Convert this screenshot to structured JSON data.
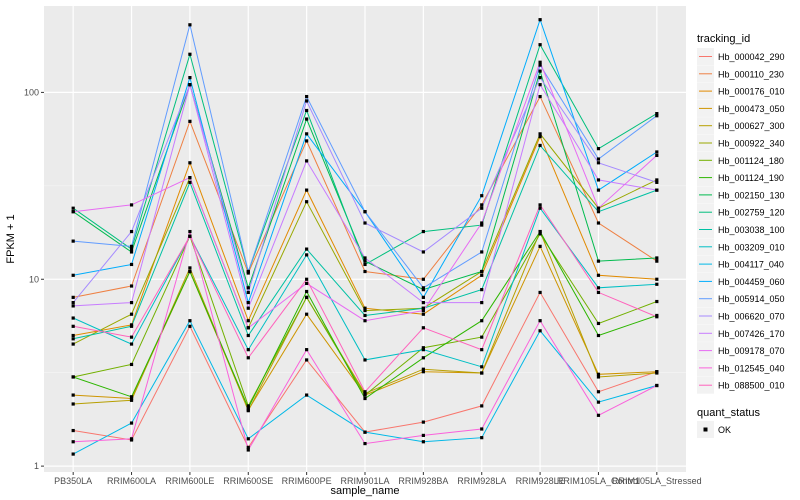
{
  "chart_data": {
    "type": "line",
    "xlabel": "sample_name",
    "ylabel": "FPKM + 1",
    "y_scale": "log10",
    "ylim": [
      0.93,
      290
    ],
    "y_ticks": [
      1,
      10,
      100
    ],
    "y_tick_labels": [
      "1",
      "10",
      "100"
    ],
    "grid": true,
    "legend_placement": "right",
    "categories": [
      "PB350LA",
      "RRIM600LA",
      "RRIM600LE",
      "RRIM600SE",
      "RRIM600PE",
      "RRIM901LA",
      "RRIM928BA",
      "RRIM928LA",
      "RRIM928LE",
      "RRIM105LA_Control",
      "RRIM105LA_Stressed"
    ],
    "legend_title": "tracking_id",
    "point_legend_title": "quant_status",
    "point_legend_entries": [
      "OK"
    ],
    "series": [
      {
        "name": "Hb_000042_290",
        "color": "#F8766D",
        "values": [
          1.55,
          1.38,
          5.6,
          1.26,
          3.7,
          1.52,
          1.72,
          2.1,
          8.5,
          2.5,
          3.2
        ]
      },
      {
        "name": "Hb_000110_230",
        "color": "#EE8043",
        "values": [
          8.0,
          9.2,
          70.0,
          10.8,
          55.0,
          11.0,
          10.0,
          25.0,
          95.0,
          20.0,
          12.5
        ]
      },
      {
        "name": "Hb_000176_010",
        "color": "#E18A00",
        "values": [
          5.0,
          5.7,
          42.0,
          6.0,
          30.0,
          7.0,
          6.5,
          10.5,
          58.0,
          10.5,
          10.0
        ]
      },
      {
        "name": "Hb_000473_050",
        "color": "#CE9500",
        "values": [
          2.4,
          2.3,
          11.0,
          2.0,
          6.5,
          2.4,
          3.2,
          3.15,
          15.0,
          3.1,
          3.2
        ]
      },
      {
        "name": "Hb_000627_300",
        "color": "#B79F00",
        "values": [
          2.15,
          2.25,
          11.5,
          1.98,
          8.0,
          2.45,
          3.3,
          3.15,
          18.0,
          3.0,
          3.15
        ]
      },
      {
        "name": "Hb_000922_340",
        "color": "#99A800",
        "values": [
          4.5,
          6.5,
          35.0,
          5.5,
          26.0,
          6.8,
          7.0,
          11.0,
          60.0,
          24.0,
          34.0
        ]
      },
      {
        "name": "Hb_001124_180",
        "color": "#72B000",
        "values": [
          3.0,
          3.5,
          17.0,
          2.1,
          8.0,
          2.4,
          4.3,
          4.9,
          17.5,
          5.8,
          7.6
        ]
      },
      {
        "name": "Hb_001124_190",
        "color": "#2DB600",
        "values": [
          3.0,
          2.35,
          11.0,
          2.05,
          8.6,
          2.3,
          3.8,
          6.0,
          18.0,
          5.0,
          6.4
        ]
      },
      {
        "name": "Hb_002150_130",
        "color": "#00BB4E",
        "values": [
          23.0,
          14.0,
          110.0,
          9.0,
          72.0,
          12.5,
          8.8,
          11.0,
          130.0,
          12.5,
          13.0
        ]
      },
      {
        "name": "Hb_002759_120",
        "color": "#00BF7D",
        "values": [
          24.0,
          14.5,
          160.0,
          11.0,
          80.0,
          12.0,
          18.0,
          19.5,
          180.0,
          50.0,
          77.0
        ]
      },
      {
        "name": "Hb_003038_100",
        "color": "#00C1A3",
        "values": [
          4.8,
          5.6,
          33.0,
          5.0,
          14.5,
          6.4,
          7.0,
          8.8,
          52.0,
          23.0,
          30.0
        ]
      },
      {
        "name": "Hb_003209_010",
        "color": "#00BFC4",
        "values": [
          6.2,
          4.5,
          17.0,
          4.2,
          13.5,
          3.7,
          4.2,
          3.4,
          24.0,
          9.0,
          9.4
        ]
      },
      {
        "name": "Hb_004117_040",
        "color": "#00B8E7",
        "values": [
          1.16,
          1.7,
          6.0,
          1.4,
          2.4,
          1.52,
          1.35,
          1.42,
          5.3,
          2.2,
          2.7
        ]
      },
      {
        "name": "Hb_004459_060",
        "color": "#00ACFC",
        "values": [
          10.5,
          12.0,
          120.0,
          7.5,
          60.0,
          23.0,
          8.0,
          28.0,
          245.0,
          30.0,
          48.0
        ]
      },
      {
        "name": "Hb_005914_050",
        "color": "#619CFF",
        "values": [
          16.0,
          15.0,
          230.0,
          11.0,
          95.0,
          23.0,
          9.0,
          14.0,
          140.0,
          44.0,
          75.0
        ]
      },
      {
        "name": "Hb_006620_070",
        "color": "#A58AFF",
        "values": [
          7.5,
          18.0,
          110.0,
          8.5,
          90.0,
          20.0,
          14.0,
          24.0,
          120.0,
          42.0,
          33.0
        ]
      },
      {
        "name": "Hb_007426_170",
        "color": "#C77CFF",
        "values": [
          7.2,
          7.5,
          110.0,
          7.0,
          43.0,
          13.0,
          7.5,
          7.5,
          110.0,
          34.0,
          30.0
        ]
      },
      {
        "name": "Hb_009178_070",
        "color": "#E76BF3",
        "values": [
          23.0,
          25.0,
          35.0,
          5.5,
          9.5,
          6.0,
          6.8,
          20.0,
          145.0,
          24.0,
          46.0
        ]
      },
      {
        "name": "Hb_012545_040",
        "color": "#FA62DB",
        "values": [
          1.35,
          1.4,
          18.0,
          1.22,
          4.2,
          1.32,
          1.46,
          1.58,
          6.0,
          1.87,
          2.7
        ]
      },
      {
        "name": "Hb_088500_010",
        "color": "#FF62BC",
        "values": [
          5.6,
          4.9,
          17.0,
          3.8,
          10.0,
          2.5,
          5.5,
          4.2,
          25.0,
          8.5,
          6.3
        ]
      }
    ]
  }
}
